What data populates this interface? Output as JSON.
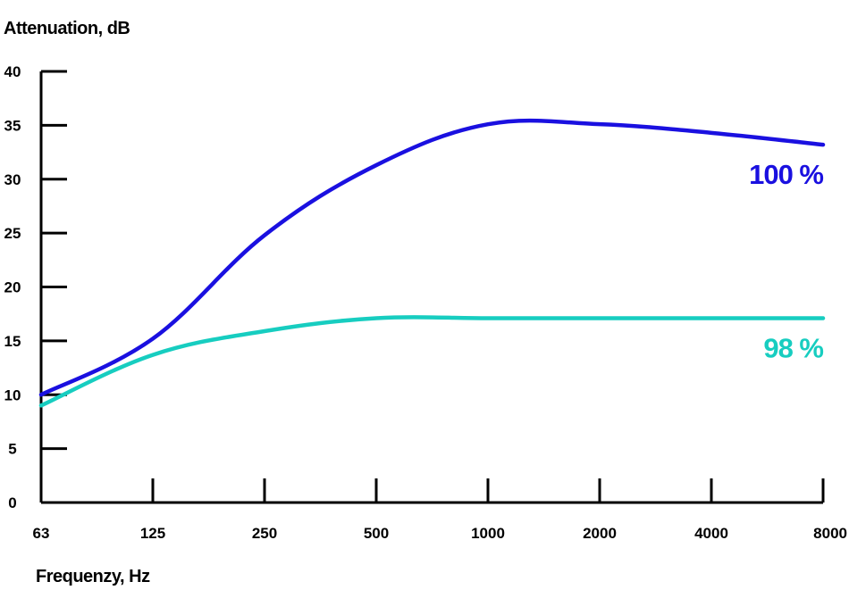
{
  "chart_data": {
    "type": "line",
    "ylabel": "Attenuation, dB",
    "xlabel": "Frequenzy, Hz",
    "x_categories": [
      "63",
      "125",
      "250",
      "500",
      "1000",
      "2000",
      "4000",
      "8000"
    ],
    "y_ticks": [
      "0",
      "5",
      "10",
      "15",
      "20",
      "25",
      "30",
      "35",
      "40"
    ],
    "ylim": [
      0,
      40
    ],
    "x_scale": "log2 (octave)",
    "grid": false,
    "series": [
      {
        "name": "100 %",
        "color": "#1a10e0",
        "points": [
          {
            "x": "63",
            "y": 10
          },
          {
            "x": "125",
            "y": 15.2
          },
          {
            "x": "250",
            "y": 24.8
          },
          {
            "x": "500",
            "y": 31.3
          },
          {
            "x": "1000",
            "y": 35.1
          },
          {
            "x": "2000",
            "y": 35.1
          },
          {
            "x": "4000",
            "y": 34.3
          },
          {
            "x": "8000",
            "y": 33.2
          }
        ]
      },
      {
        "name": "98 %",
        "color": "#17cdc0",
        "points": [
          {
            "x": "63",
            "y": 9
          },
          {
            "x": "125",
            "y": 13.7
          },
          {
            "x": "250",
            "y": 15.9
          },
          {
            "x": "500",
            "y": 17.1
          },
          {
            "x": "1000",
            "y": 17.1
          },
          {
            "x": "2000",
            "y": 17.1
          },
          {
            "x": "4000",
            "y": 17.1
          },
          {
            "x": "8000",
            "y": 17.1
          }
        ]
      }
    ]
  }
}
